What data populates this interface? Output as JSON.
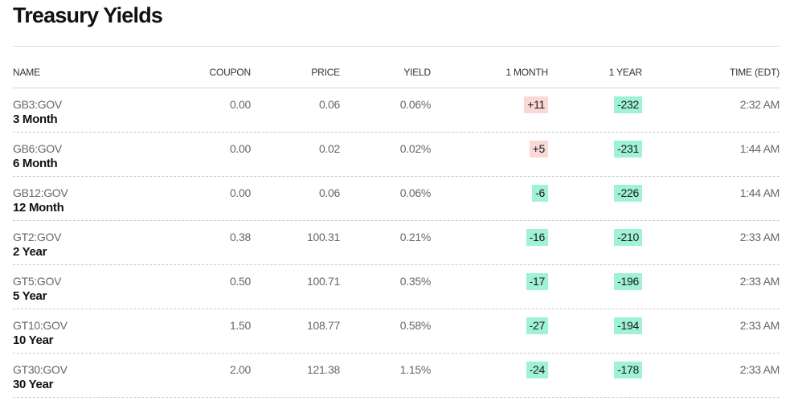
{
  "title": "Treasury Yields",
  "colors": {
    "positive_change_bg": "#fad8d6",
    "negative_change_bg": "#9ff1d7"
  },
  "columns": {
    "name": "NAME",
    "coupon": "COUPON",
    "price": "PRICE",
    "yield": "YIELD",
    "one_month": "1 MONTH",
    "one_year": "1 YEAR",
    "time": "TIME (EDT)"
  },
  "rows": [
    {
      "ticker": "GB3:GOV",
      "name": "3 Month",
      "coupon": "0.00",
      "price": "0.06",
      "yield": "0.06%",
      "one_month": "+11",
      "one_month_dir": "up",
      "one_year": "-232",
      "one_year_dir": "down",
      "time": "2:32 AM"
    },
    {
      "ticker": "GB6:GOV",
      "name": "6 Month",
      "coupon": "0.00",
      "price": "0.02",
      "yield": "0.02%",
      "one_month": "+5",
      "one_month_dir": "up",
      "one_year": "-231",
      "one_year_dir": "down",
      "time": "1:44 AM"
    },
    {
      "ticker": "GB12:GOV",
      "name": "12 Month",
      "coupon": "0.00",
      "price": "0.06",
      "yield": "0.06%",
      "one_month": "-6",
      "one_month_dir": "down",
      "one_year": "-226",
      "one_year_dir": "down",
      "time": "1:44 AM"
    },
    {
      "ticker": "GT2:GOV",
      "name": "2 Year",
      "coupon": "0.38",
      "price": "100.31",
      "yield": "0.21%",
      "one_month": "-16",
      "one_month_dir": "down",
      "one_year": "-210",
      "one_year_dir": "down",
      "time": "2:33 AM"
    },
    {
      "ticker": "GT5:GOV",
      "name": "5 Year",
      "coupon": "0.50",
      "price": "100.71",
      "yield": "0.35%",
      "one_month": "-17",
      "one_month_dir": "down",
      "one_year": "-196",
      "one_year_dir": "down",
      "time": "2:33 AM"
    },
    {
      "ticker": "GT10:GOV",
      "name": "10 Year",
      "coupon": "1.50",
      "price": "108.77",
      "yield": "0.58%",
      "one_month": "-27",
      "one_month_dir": "down",
      "one_year": "-194",
      "one_year_dir": "down",
      "time": "2:33 AM"
    },
    {
      "ticker": "GT30:GOV",
      "name": "30 Year",
      "coupon": "2.00",
      "price": "121.38",
      "yield": "1.15%",
      "one_month": "-24",
      "one_month_dir": "down",
      "one_year": "-178",
      "one_year_dir": "down",
      "time": "2:33 AM"
    }
  ]
}
